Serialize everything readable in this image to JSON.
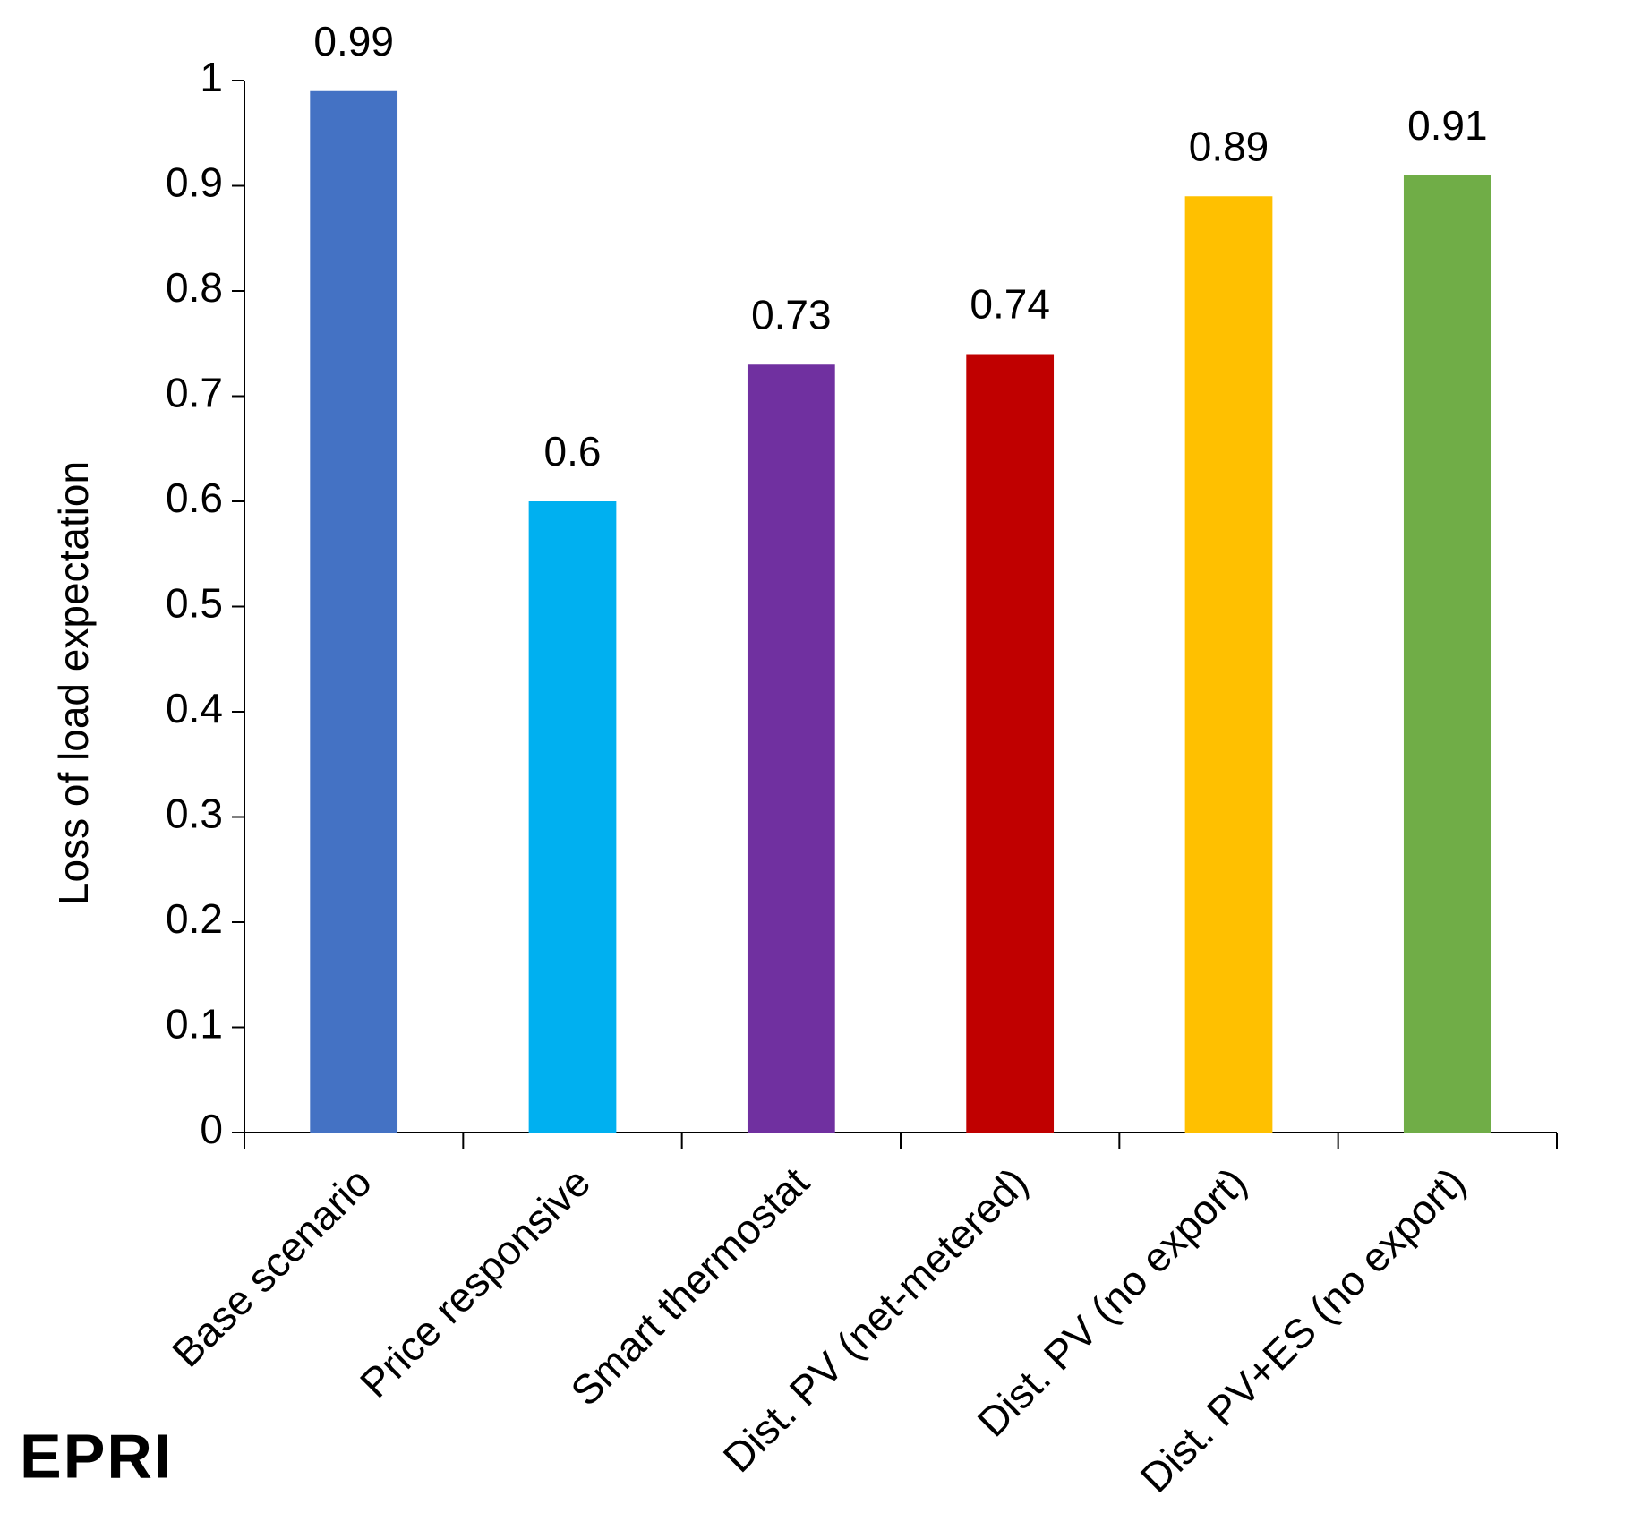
{
  "chart_data": {
    "type": "bar",
    "y_label": "Loss of load expectation",
    "categories": [
      "Base scenario",
      "Price responsive",
      "Smart thermostat",
      "Dist. PV (net-metered)",
      "Dist. PV (no export)",
      "Dist. PV+ES (no export)"
    ],
    "values": [
      0.99,
      0.6,
      0.73,
      0.74,
      0.89,
      0.91
    ],
    "colors": [
      "#4472c4",
      "#00b0f0",
      "#7030a0",
      "#c00000",
      "#ffc000",
      "#70ad47"
    ],
    "ylim": [
      0,
      1
    ],
    "yticks": [
      0,
      0.1,
      0.2,
      0.3,
      0.4,
      0.5,
      0.6,
      0.7,
      0.8,
      0.9,
      1
    ],
    "grid": false
  },
  "logo": "EPRI"
}
